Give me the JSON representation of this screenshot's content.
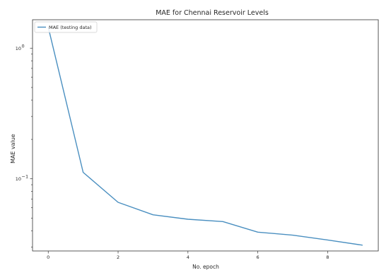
{
  "chart_data": {
    "type": "line",
    "title": "MAE for Chennai Reservoir Levels",
    "xlabel": "No. epoch",
    "ylabel": "MAE value",
    "yscale": "log",
    "xlim": [
      -0.45,
      9.45
    ],
    "ylim": [
      0.028,
      1.65
    ],
    "x_ticks": [
      {
        "value": 0,
        "label": "0"
      },
      {
        "value": 2,
        "label": "2"
      },
      {
        "value": 4,
        "label": "4"
      },
      {
        "value": 6,
        "label": "6"
      },
      {
        "value": 8,
        "label": "8"
      }
    ],
    "y_ticks": [
      {
        "value": 1,
        "base": "10",
        "exp": "0"
      },
      {
        "value": 0.1,
        "base": "10",
        "exp": "−1"
      }
    ],
    "grid": false,
    "legend_position": "top-left",
    "series": [
      {
        "name": "MAE (testing data)",
        "color": "#4a8fc0",
        "x": [
          0,
          1,
          2,
          3,
          4,
          5,
          6,
          7,
          8,
          9
        ],
        "y": [
          1.45,
          0.112,
          0.066,
          0.053,
          0.049,
          0.047,
          0.039,
          0.037,
          0.034,
          0.031
        ]
      }
    ]
  }
}
